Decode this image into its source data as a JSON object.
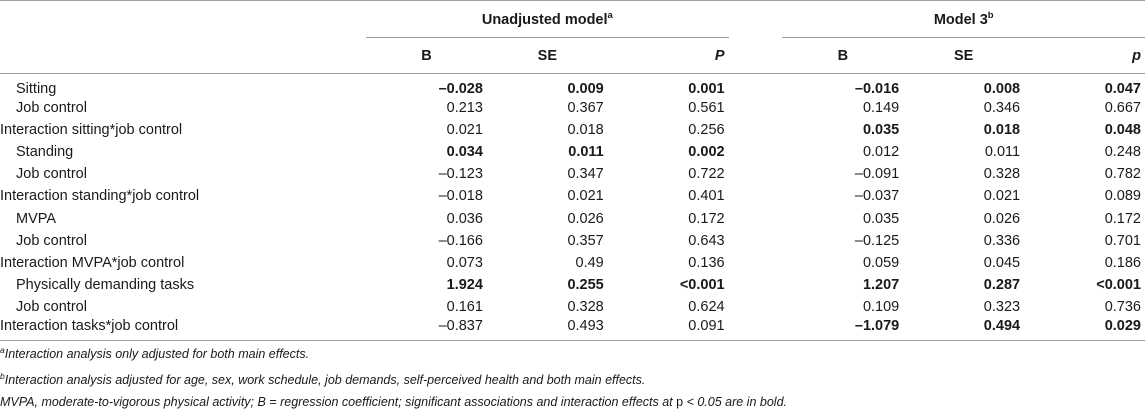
{
  "table": {
    "group1": {
      "title": "Unadjusted model",
      "sup": "a"
    },
    "group2": {
      "title": "Model 3",
      "sup": "b"
    },
    "columns": [
      "B",
      "SE",
      "P",
      "B",
      "SE",
      "p"
    ],
    "rows": [
      {
        "label": "Sitting",
        "indent": true,
        "cells": [
          {
            "v": "–0.028",
            "b": true
          },
          {
            "v": "0.009",
            "b": true
          },
          {
            "v": "0.001",
            "b": true
          },
          {
            "v": "–0.016",
            "b": true
          },
          {
            "v": "0.008",
            "b": true
          },
          {
            "v": "0.047",
            "b": true
          }
        ]
      },
      {
        "label": "Job control",
        "indent": true,
        "cells": [
          {
            "v": "0.213"
          },
          {
            "v": "0.367"
          },
          {
            "v": "0.561"
          },
          {
            "v": "0.149"
          },
          {
            "v": "0.346"
          },
          {
            "v": "0.667"
          }
        ]
      },
      {
        "label": "Interaction sitting*job control",
        "indent": false,
        "cells": [
          {
            "v": "0.021"
          },
          {
            "v": "0.018"
          },
          {
            "v": "0.256"
          },
          {
            "v": "0.035",
            "b": true
          },
          {
            "v": "0.018",
            "b": true
          },
          {
            "v": "0.048",
            "b": true
          }
        ]
      },
      {
        "label": "Standing",
        "indent": true,
        "cells": [
          {
            "v": "0.034",
            "b": true
          },
          {
            "v": "0.011",
            "b": true
          },
          {
            "v": "0.002",
            "b": true
          },
          {
            "v": "0.012"
          },
          {
            "v": "0.011"
          },
          {
            "v": "0.248"
          }
        ]
      },
      {
        "label": "Job control",
        "indent": true,
        "cells": [
          {
            "v": "–0.123"
          },
          {
            "v": "0.347"
          },
          {
            "v": "0.722"
          },
          {
            "v": "–0.091"
          },
          {
            "v": "0.328"
          },
          {
            "v": "0.782"
          }
        ]
      },
      {
        "label": "Interaction standing*job control",
        "indent": false,
        "cells": [
          {
            "v": "–0.018"
          },
          {
            "v": "0.021"
          },
          {
            "v": "0.401"
          },
          {
            "v": "–0.037"
          },
          {
            "v": "0.021"
          },
          {
            "v": "0.089"
          }
        ]
      },
      {
        "label": "MVPA",
        "indent": true,
        "cells": [
          {
            "v": "0.036"
          },
          {
            "v": "0.026"
          },
          {
            "v": "0.172"
          },
          {
            "v": "0.035"
          },
          {
            "v": "0.026"
          },
          {
            "v": "0.172"
          }
        ]
      },
      {
        "label": "Job control",
        "indent": true,
        "cells": [
          {
            "v": "–0.166"
          },
          {
            "v": "0.357"
          },
          {
            "v": "0.643"
          },
          {
            "v": "–0.125"
          },
          {
            "v": "0.336"
          },
          {
            "v": "0.701"
          }
        ]
      },
      {
        "label": "Interaction MVPA*job control",
        "indent": false,
        "cells": [
          {
            "v": "0.073"
          },
          {
            "v": "0.49"
          },
          {
            "v": "0.136"
          },
          {
            "v": "0.059"
          },
          {
            "v": "0.045"
          },
          {
            "v": "0.186"
          }
        ]
      },
      {
        "label": "Physically demanding tasks",
        "indent": true,
        "cells": [
          {
            "v": "1.924",
            "b": true
          },
          {
            "v": "0.255",
            "b": true
          },
          {
            "v": "<0.001",
            "b": true
          },
          {
            "v": "1.207",
            "b": true
          },
          {
            "v": "0.287",
            "b": true
          },
          {
            "v": "<0.001",
            "b": true
          }
        ]
      },
      {
        "label": "Job control",
        "indent": true,
        "cells": [
          {
            "v": "0.161"
          },
          {
            "v": "0.328"
          },
          {
            "v": "0.624"
          },
          {
            "v": "0.109"
          },
          {
            "v": "0.323"
          },
          {
            "v": "0.736"
          }
        ]
      },
      {
        "label": "Interaction tasks*job control",
        "indent": false,
        "cells": [
          {
            "v": "–0.837"
          },
          {
            "v": "0.493"
          },
          {
            "v": "0.091"
          },
          {
            "v": "–1.079",
            "b": true
          },
          {
            "v": "0.494",
            "b": true
          },
          {
            "v": "0.029",
            "b": true
          }
        ]
      }
    ]
  },
  "notes": {
    "a_sup": "a",
    "a_text": "Interaction analysis only adjusted for both main effects.",
    "b_sup": "b",
    "b_text": "Interaction analysis adjusted for age, sex, work schedule, job demands, self-perceived health and both main effects.",
    "abbrev_text": "MVPA, moderate-to-vigorous physical activity; B = regression coefficient; significant associations and interaction effects at ",
    "abbrev_p": "p",
    "abbrev_tail": " < 0.05 are in bold."
  }
}
